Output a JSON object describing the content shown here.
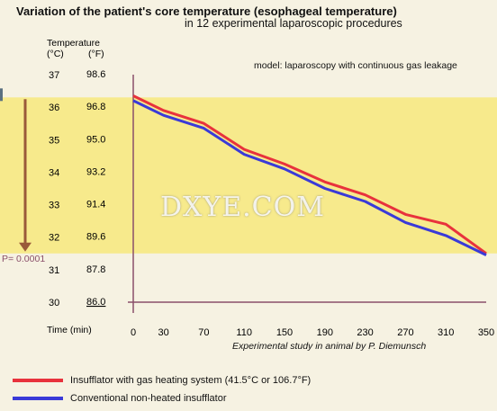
{
  "header": {
    "title": "Variation of the patient's core temperature (esophageal temperature)",
    "subtitle": "in 12 experimental laparoscopic procedures"
  },
  "note": "model: laparoscopy with continuous gas leakage",
  "source": "Experimental study in animal by P. Diemunsch",
  "watermark": "DXYE.COM",
  "pvalue": "P= 0.0001",
  "colors": {
    "background": "#f6f2e2",
    "band": "#f7ea8c",
    "heated": "#e8323c",
    "conventional": "#3a3ad8",
    "axis": "#8a4f6a",
    "arrow": "#9a5a3a"
  },
  "chart_data": {
    "type": "line",
    "title": "Variation of the patient's core temperature (esophageal temperature)",
    "subtitle": "in 12 experimental laparoscopic procedures",
    "xlabel": "Time (min)",
    "ylabel": "Temperature",
    "y_unit_c": "(°C)",
    "y_unit_f": "(°F)",
    "x": [
      0,
      30,
      70,
      110,
      150,
      190,
      230,
      270,
      310,
      350
    ],
    "x_ticks": [
      "0",
      "30",
      "70",
      "110",
      "150",
      "190",
      "230",
      "270",
      "310",
      "350"
    ],
    "y_ticks_c": [
      "37",
      "36",
      "35",
      "34",
      "33",
      "32",
      "31",
      "30"
    ],
    "y_ticks_f": [
      "98.6",
      "96.8",
      "95.0",
      "93.2",
      "91.4",
      "89.6",
      "87.8",
      "86.0"
    ],
    "xlim": [
      0,
      350
    ],
    "ylim": [
      30,
      37
    ],
    "band_range": [
      31.5,
      36.3
    ],
    "series": [
      {
        "name": "Insufflator with gas heating system (41.5°C or 106.7°F)",
        "color": "#e8323c",
        "values": [
          36.35,
          35.9,
          35.5,
          34.7,
          34.25,
          33.7,
          33.3,
          32.7,
          32.4,
          31.5
        ]
      },
      {
        "name": "Conventional non-heated insufflator",
        "color": "#3a3ad8",
        "values": [
          36.2,
          35.75,
          35.35,
          34.55,
          34.1,
          33.5,
          33.1,
          32.45,
          32.05,
          31.45
        ]
      }
    ],
    "grid": false,
    "legend_position": "bottom-left"
  }
}
